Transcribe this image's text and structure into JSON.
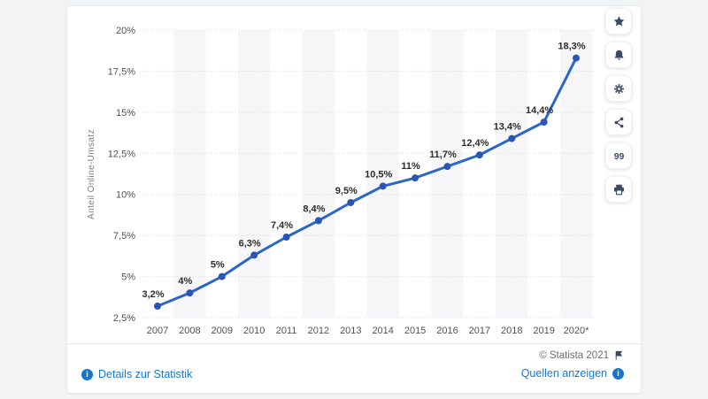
{
  "chart_data": {
    "type": "line",
    "title": "",
    "xlabel": "",
    "ylabel": "Anteil Online-Umsatz",
    "categories": [
      "2007",
      "2008",
      "2009",
      "2010",
      "2011",
      "2012",
      "2013",
      "2014",
      "2015",
      "2016",
      "2017",
      "2018",
      "2019",
      "2020*"
    ],
    "values": [
      3.2,
      4,
      5,
      6.3,
      7.4,
      8.4,
      9.5,
      10.5,
      11,
      11.7,
      12.4,
      13.4,
      14.4,
      18.3
    ],
    "point_labels": [
      "3,2%",
      "4%",
      "5%",
      "6,3%",
      "7,4%",
      "8,4%",
      "9,5%",
      "10,5%",
      "11%",
      "11,7%",
      "12,4%",
      "13,4%",
      "14,4%",
      "18,3%"
    ],
    "y_tick_values": [
      20,
      17.5,
      15,
      12.5,
      10,
      7.5,
      5,
      2.5
    ],
    "y_tick_labels": [
      "20%",
      "17,5%",
      "15%",
      "12,5%",
      "10%",
      "7,5%",
      "5%",
      "2,5%"
    ],
    "ylim": [
      2.5,
      20
    ],
    "grid": true,
    "legend": "none",
    "line_color": "#2c65c9",
    "marker_color": "#2a55b8",
    "stripe_color": "#f6f6f8",
    "grid_color": "#dadbdd"
  },
  "footer": {
    "details_label": "Details zur Statistik",
    "copyright": "© Statista 2021",
    "sources_label": "Quellen anzeigen"
  },
  "sidebar": {
    "buttons": [
      {
        "icon": "star-icon",
        "name": "favorite-button"
      },
      {
        "icon": "bell-icon",
        "name": "notifications-button"
      },
      {
        "icon": "gear-icon",
        "name": "settings-button"
      },
      {
        "icon": "share-icon",
        "name": "share-button"
      },
      {
        "icon": "quote-icon",
        "name": "cite-button"
      },
      {
        "icon": "print-icon",
        "name": "print-button"
      }
    ]
  }
}
